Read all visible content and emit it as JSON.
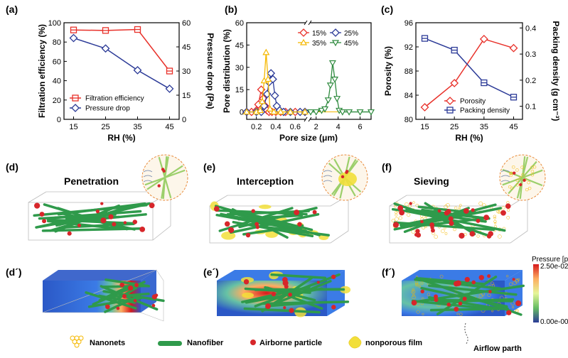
{
  "panel_labels": {
    "a": "(a)",
    "b": "(b)",
    "c": "(c)",
    "d": "(d)",
    "e": "(e)",
    "f": "(f)",
    "d2": "(d´)",
    "e2": "(e´)",
    "f2": "(f´)"
  },
  "mechanisms": {
    "d": "Penetration",
    "e": "Interception",
    "f": "Sieving"
  },
  "colorbar": {
    "title": "Pressure [pa]",
    "max": "2.50e-02",
    "min": "0.00e-00"
  },
  "bottom_legend": {
    "nanonets": "Nanonets",
    "nanofiber": "Nanofiber",
    "particle": "Airborne particle",
    "film": "nonporous film",
    "airflow": "Airflow parth"
  },
  "colors": {
    "red": "#e8312a",
    "blue": "#2b3a97",
    "orange": "#f5b800",
    "green": "#2e8a3e",
    "fiber": "#2f9a4b",
    "particle": "#d7262a",
    "film": "#f2df3a"
  },
  "chart_data": [
    {
      "type": "line",
      "title": "",
      "xlabel": "RH (%)",
      "ylabel": "Filtration efficiency (%)",
      "y2label": "Pressure drop (Pa)",
      "xlim": [
        12,
        48
      ],
      "ylim": [
        0,
        100
      ],
      "y2lim": [
        0,
        60
      ],
      "x": [
        15,
        25,
        35,
        45
      ],
      "xticks": [
        "15",
        "25",
        "35",
        "45"
      ],
      "yticks": [
        "0",
        "20",
        "40",
        "60",
        "80",
        "100"
      ],
      "y2ticks": [
        "0",
        "15",
        "30",
        "45",
        "60"
      ],
      "series": [
        {
          "name": "Filtration efficiency",
          "axis": "left",
          "color": "#e8312a",
          "marker": "square",
          "values": [
            92.5,
            92,
            93,
            50
          ]
        },
        {
          "name": "Pressure drop",
          "axis": "right",
          "color": "#2b3a97",
          "marker": "diamond",
          "values": [
            50.5,
            44,
            30.5,
            19
          ]
        }
      ],
      "legend": "bottom-left"
    },
    {
      "type": "line",
      "title": "",
      "xlabel": "Pore size (μm)",
      "ylabel": "Pore distribution (%)",
      "ylim": [
        -5,
        60
      ],
      "yticks": [
        "0",
        "15",
        "30",
        "45",
        "60"
      ],
      "xticks_left": [
        "0.2",
        "0.4",
        "0.6"
      ],
      "xticks_right": [
        "2",
        "4",
        "6"
      ],
      "xlim_left": [
        0.1,
        0.7
      ],
      "xlim_right": [
        1.5,
        7
      ],
      "series": [
        {
          "name": "15%",
          "color": "#e8312a",
          "marker": "diamond",
          "x": [
            0.1,
            0.15,
            0.2,
            0.22,
            0.25,
            0.27,
            0.29,
            0.31,
            0.33,
            0.36,
            0.4,
            0.45,
            0.5,
            0.6,
            0.7
          ],
          "values": [
            0,
            0,
            1,
            5,
            15,
            9,
            4,
            1,
            0,
            0,
            0,
            0,
            0,
            0,
            0
          ]
        },
        {
          "name": "25%",
          "color": "#2b3a97",
          "marker": "diamond",
          "x": [
            0.1,
            0.2,
            0.25,
            0.28,
            0.31,
            0.33,
            0.35,
            0.37,
            0.39,
            0.41,
            0.44,
            0.48,
            0.55,
            0.65,
            0.7
          ],
          "values": [
            0,
            0,
            0,
            4,
            12,
            20,
            26,
            22,
            11,
            4,
            1,
            0,
            0,
            0,
            0
          ]
        },
        {
          "name": "35%",
          "color": "#f5b800",
          "marker": "triangle-up",
          "x": [
            0.1,
            0.2,
            0.24,
            0.26,
            0.28,
            0.3,
            0.32,
            0.34,
            0.38,
            0.45,
            0.55,
            0.7
          ],
          "values": [
            0,
            0,
            1,
            7,
            21,
            40,
            22,
            2,
            0,
            0,
            0,
            0
          ]
        },
        {
          "name": "45%",
          "color": "#2e8a3e",
          "marker": "triangle-down",
          "x": [
            1.5,
            2,
            2.5,
            2.8,
            3.1,
            3.3,
            3.5,
            3.7,
            3.9,
            4.1,
            4.4,
            5,
            6,
            7
          ],
          "values": [
            0,
            0,
            1,
            2,
            8,
            18,
            33,
            22,
            9,
            1,
            0,
            0,
            0,
            0
          ]
        }
      ],
      "legend": "top-right"
    },
    {
      "type": "line",
      "title": "",
      "xlabel": "RH (%)",
      "ylabel": "Porosity (%)",
      "y2label": "Packing density (g cm⁻³)",
      "xlim": [
        12,
        48
      ],
      "ylim": [
        80,
        96
      ],
      "y2lim": [
        0.05,
        0.42
      ],
      "x": [
        15,
        25,
        35,
        45
      ],
      "xticks": [
        "15",
        "25",
        "35",
        "45"
      ],
      "yticks": [
        "80",
        "84",
        "88",
        "92",
        "96"
      ],
      "y2ticks": [
        "0.1",
        "0.2",
        "0.3",
        "0.4"
      ],
      "series": [
        {
          "name": "Porosity",
          "axis": "left",
          "color": "#e8312a",
          "marker": "diamond",
          "values": [
            82,
            86,
            93.3,
            91.8
          ]
        },
        {
          "name": "Packing density",
          "axis": "right",
          "color": "#2b3a97",
          "marker": "square",
          "values": [
            0.36,
            0.315,
            0.19,
            0.135
          ]
        }
      ],
      "legend": "bottom-right"
    }
  ]
}
